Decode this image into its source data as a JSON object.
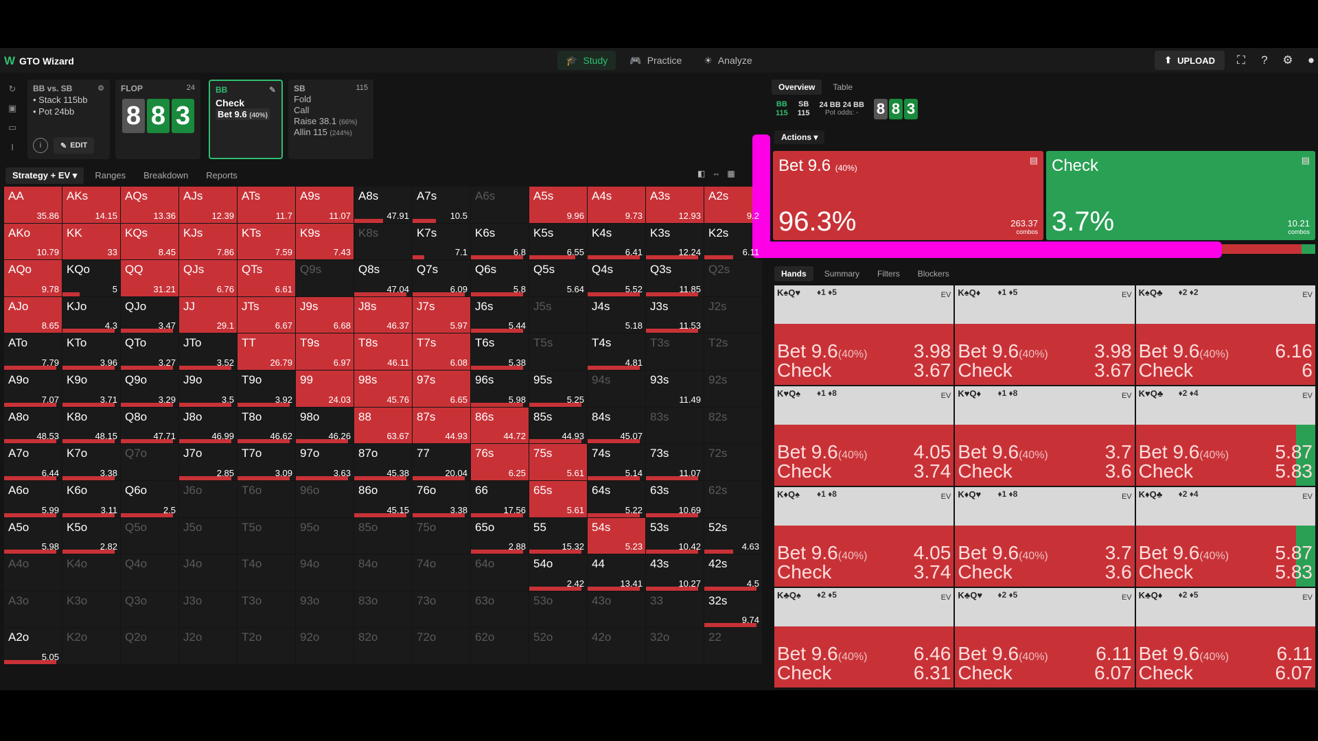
{
  "app": {
    "name": "GTO Wizard"
  },
  "nav": {
    "items": [
      {
        "label": "Study"
      },
      {
        "label": "Practice"
      },
      {
        "label": "Analyze"
      }
    ],
    "upload": "UPLOAD"
  },
  "node_info": {
    "title": "BB vs. SB",
    "stack": "Stack 115bb",
    "pot": "Pot 24bb",
    "edit": "EDIT"
  },
  "flop": {
    "title": "FLOP",
    "num": "24",
    "cards": [
      "8",
      "8",
      "3"
    ]
  },
  "bb_node": {
    "title": "BB",
    "line1": "Check",
    "line2": "Bet 9.6",
    "line2_pct": "(40%)"
  },
  "sb_node": {
    "title": "SB",
    "num": "115",
    "lines": [
      {
        "t": "Fold",
        "p": ""
      },
      {
        "t": "Call",
        "p": ""
      },
      {
        "t": "Raise 38.1",
        "p": "(66%)"
      },
      {
        "t": "Allin 115",
        "p": "(244%)"
      }
    ]
  },
  "grid_tabs": [
    "Strategy + EV ▾",
    "Ranges",
    "Breakdown",
    "Reports"
  ],
  "grid": [
    [
      [
        "AA",
        "35.86",
        1,
        0
      ],
      [
        "AKs",
        "14.15",
        1,
        0
      ],
      [
        "AQs",
        "13.36",
        1,
        0
      ],
      [
        "AJs",
        "12.39",
        1,
        0
      ],
      [
        "ATs",
        "11.7",
        1,
        0
      ],
      [
        "A9s",
        "11.07",
        1,
        0
      ],
      [
        "A8s",
        "47.91",
        0,
        0.5
      ],
      [
        "A7s",
        "10.5",
        0,
        0.4
      ],
      [
        "A6s",
        "",
        0,
        0,
        1
      ],
      [
        "A5s",
        "9.96",
        1,
        0
      ],
      [
        "A4s",
        "9.73",
        1,
        0
      ],
      [
        "A3s",
        "12.93",
        1,
        0
      ],
      [
        "A2s",
        "9.2",
        1,
        0
      ]
    ],
    [
      [
        "AKo",
        "10.79",
        1,
        0
      ],
      [
        "KK",
        "33",
        1,
        0
      ],
      [
        "KQs",
        "8.45",
        1,
        0
      ],
      [
        "KJs",
        "7.86",
        1,
        0
      ],
      [
        "KTs",
        "7.59",
        1,
        0
      ],
      [
        "K9s",
        "7.43",
        1,
        0
      ],
      [
        "K8s",
        "",
        0,
        0,
        1
      ],
      [
        "K7s",
        "7.1",
        0,
        0.2
      ],
      [
        "K6s",
        "6.8",
        0,
        0.9
      ],
      [
        "K5s",
        "6.55",
        0,
        0.8
      ],
      [
        "K4s",
        "6.41",
        0,
        0.9
      ],
      [
        "K3s",
        "12.24",
        0,
        0.9
      ],
      [
        "K2s",
        "6.11",
        0,
        0.5
      ]
    ],
    [
      [
        "AQo",
        "9.78",
        1,
        0
      ],
      [
        "KQo",
        "5",
        0,
        0.3
      ],
      [
        "QQ",
        "31.21",
        1,
        0
      ],
      [
        "QJs",
        "6.76",
        1,
        0
      ],
      [
        "QTs",
        "6.61",
        1,
        0
      ],
      [
        "Q9s",
        "",
        0,
        0,
        1
      ],
      [
        "Q8s",
        "47.04",
        0,
        0.9
      ],
      [
        "Q7s",
        "6.09",
        0,
        0.9
      ],
      [
        "Q6s",
        "5.8",
        0,
        0.9
      ],
      [
        "Q5s",
        "5.64",
        0,
        0
      ],
      [
        "Q4s",
        "5.52",
        0,
        0.9
      ],
      [
        "Q3s",
        "11.85",
        0,
        0.9
      ],
      [
        "Q2s",
        "",
        0,
        0,
        1
      ]
    ],
    [
      [
        "AJo",
        "8.65",
        1,
        0
      ],
      [
        "KJo",
        "4.3",
        0,
        0.9
      ],
      [
        "QJo",
        "3.47",
        0,
        0.9
      ],
      [
        "JJ",
        "29.1",
        1,
        0
      ],
      [
        "JTs",
        "6.67",
        1,
        0
      ],
      [
        "J9s",
        "6.68",
        1,
        0
      ],
      [
        "J8s",
        "46.37",
        1,
        0
      ],
      [
        "J7s",
        "5.97",
        1,
        0
      ],
      [
        "J6s",
        "5.44",
        0,
        0.9
      ],
      [
        "J5s",
        "",
        0,
        0,
        1
      ],
      [
        "J4s",
        "5.18",
        0,
        0
      ],
      [
        "J3s",
        "11.53",
        0,
        0.9
      ],
      [
        "J2s",
        "",
        0,
        0,
        1
      ]
    ],
    [
      [
        "ATo",
        "7.79",
        0,
        0.9
      ],
      [
        "KTo",
        "3.96",
        0,
        0.9
      ],
      [
        "QTo",
        "3.27",
        0,
        0.9
      ],
      [
        "JTo",
        "3.52",
        0,
        0.9
      ],
      [
        "TT",
        "26.79",
        1,
        0
      ],
      [
        "T9s",
        "6.97",
        1,
        0
      ],
      [
        "T8s",
        "46.11",
        1,
        0
      ],
      [
        "T7s",
        "6.08",
        1,
        0
      ],
      [
        "T6s",
        "5.38",
        0,
        0.9
      ],
      [
        "T5s",
        "",
        0,
        0,
        1
      ],
      [
        "T4s",
        "4.81",
        0,
        0.9
      ],
      [
        "T3s",
        "",
        0,
        0,
        1
      ],
      [
        "T2s",
        "",
        0,
        0,
        1
      ]
    ],
    [
      [
        "A9o",
        "7.07",
        0,
        0.9
      ],
      [
        "K9o",
        "3.71",
        0,
        0.9
      ],
      [
        "Q9o",
        "3.29",
        0,
        0.9
      ],
      [
        "J9o",
        "3.5",
        0,
        0.9
      ],
      [
        "T9o",
        "3.92",
        0,
        0.9
      ],
      [
        "99",
        "24.03",
        1,
        0
      ],
      [
        "98s",
        "45.76",
        1,
        0
      ],
      [
        "97s",
        "6.65",
        1,
        0
      ],
      [
        "96s",
        "5.98",
        0,
        0.9
      ],
      [
        "95s",
        "5.25",
        0,
        0.9
      ],
      [
        "94s",
        "",
        0,
        0,
        1
      ],
      [
        "93s",
        "11.49",
        0,
        0
      ],
      [
        "92s",
        "",
        0,
        0,
        1
      ]
    ],
    [
      [
        "A8o",
        "48.53",
        0,
        0.9
      ],
      [
        "K8o",
        "48.15",
        0,
        0.9
      ],
      [
        "Q8o",
        "47.71",
        0,
        0.9
      ],
      [
        "J8o",
        "46.99",
        0,
        0.9
      ],
      [
        "T8o",
        "46.62",
        0,
        0.9
      ],
      [
        "98o",
        "46.26",
        0,
        0.9
      ],
      [
        "88",
        "63.67",
        1,
        0
      ],
      [
        "87s",
        "44.93",
        1,
        0
      ],
      [
        "86s",
        "44.72",
        1,
        0
      ],
      [
        "85s",
        "44.93",
        0,
        0.9
      ],
      [
        "84s",
        "45.07",
        0,
        0.9
      ],
      [
        "83s",
        "",
        0,
        0,
        1
      ],
      [
        "82s",
        "",
        0,
        0,
        1
      ]
    ],
    [
      [
        "A7o",
        "6.44",
        0,
        0.9
      ],
      [
        "K7o",
        "3.38",
        0,
        0.9
      ],
      [
        "Q7o",
        "",
        0,
        0,
        1
      ],
      [
        "J7o",
        "2.85",
        0,
        0.9
      ],
      [
        "T7o",
        "3.09",
        0,
        0.9
      ],
      [
        "97o",
        "3.63",
        0,
        0.9
      ],
      [
        "87o",
        "45.38",
        0,
        0.9
      ],
      [
        "77",
        "20.04",
        0,
        0.9
      ],
      [
        "76s",
        "6.25",
        1,
        0
      ],
      [
        "75s",
        "5.61",
        1,
        0
      ],
      [
        "74s",
        "5.14",
        0,
        0.9
      ],
      [
        "73s",
        "11.07",
        0,
        0.9
      ],
      [
        "72s",
        "",
        0,
        0,
        1
      ]
    ],
    [
      [
        "A6o",
        "5.99",
        0,
        0.9
      ],
      [
        "K6o",
        "3.11",
        0,
        0.9
      ],
      [
        "Q6o",
        "2.5",
        0,
        0.9
      ],
      [
        "J6o",
        "",
        0,
        0,
        1
      ],
      [
        "T6o",
        "",
        0,
        0,
        1
      ],
      [
        "96o",
        "",
        0,
        0,
        1
      ],
      [
        "86o",
        "45.15",
        0,
        0.9
      ],
      [
        "76o",
        "3.38",
        0,
        0.9
      ],
      [
        "66",
        "17.56",
        0,
        0.9
      ],
      [
        "65s",
        "5.61",
        1,
        0
      ],
      [
        "64s",
        "5.22",
        0,
        0.9
      ],
      [
        "63s",
        "10.69",
        0,
        0.9
      ],
      [
        "62s",
        "",
        0,
        0,
        1
      ]
    ],
    [
      [
        "A5o",
        "5.98",
        0,
        0.9
      ],
      [
        "K5o",
        "2.82",
        0,
        0.9
      ],
      [
        "Q5o",
        "",
        0,
        0,
        1
      ],
      [
        "J5o",
        "",
        0,
        0,
        1
      ],
      [
        "T5o",
        "",
        0,
        0,
        1
      ],
      [
        "95o",
        "",
        0,
        0,
        1
      ],
      [
        "85o",
        "",
        0,
        0,
        1
      ],
      [
        "75o",
        "",
        0,
        0,
        1
      ],
      [
        "65o",
        "2.88",
        0,
        0.9
      ],
      [
        "55",
        "15.32",
        0,
        0.9
      ],
      [
        "54s",
        "5.23",
        1,
        0
      ],
      [
        "53s",
        "10.42",
        0,
        0.9
      ],
      [
        "52s",
        "4.63",
        0,
        0.5
      ]
    ],
    [
      [
        "A4o",
        "",
        0,
        0,
        1
      ],
      [
        "K4o",
        "",
        0,
        0,
        1
      ],
      [
        "Q4o",
        "",
        0,
        0,
        1
      ],
      [
        "J4o",
        "",
        0,
        0,
        1
      ],
      [
        "T4o",
        "",
        0,
        0,
        1
      ],
      [
        "94o",
        "",
        0,
        0,
        1
      ],
      [
        "84o",
        "",
        0,
        0,
        1
      ],
      [
        "74o",
        "",
        0,
        0,
        1
      ],
      [
        "64o",
        "",
        0,
        0,
        1
      ],
      [
        "54o",
        "2.42",
        0,
        0.9
      ],
      [
        "44",
        "13.41",
        0,
        0.9
      ],
      [
        "43s",
        "10.27",
        0,
        0.9
      ],
      [
        "42s",
        "4.5",
        0,
        0.9
      ]
    ],
    [
      [
        "A3o",
        "",
        0,
        0,
        1
      ],
      [
        "K3o",
        "",
        0,
        0,
        1
      ],
      [
        "Q3o",
        "",
        0,
        0,
        1
      ],
      [
        "J3o",
        "",
        0,
        0,
        1
      ],
      [
        "T3o",
        "",
        0,
        0,
        1
      ],
      [
        "93o",
        "",
        0,
        0,
        1
      ],
      [
        "83o",
        "",
        0,
        0,
        1
      ],
      [
        "73o",
        "",
        0,
        0,
        1
      ],
      [
        "63o",
        "",
        0,
        0,
        1
      ],
      [
        "53o",
        "",
        0,
        0,
        1
      ],
      [
        "43o",
        "",
        0,
        0,
        1
      ],
      [
        "33",
        "",
        0,
        0,
        1
      ],
      [
        "32s",
        "9.74",
        0,
        0.9
      ]
    ],
    [
      [
        "A2o",
        "5.05",
        0,
        0.9
      ],
      [
        "K2o",
        "",
        0,
        0,
        1
      ],
      [
        "Q2o",
        "",
        0,
        0,
        1
      ],
      [
        "J2o",
        "",
        0,
        0,
        1
      ],
      [
        "T2o",
        "",
        0,
        0,
        1
      ],
      [
        "92o",
        "",
        0,
        0,
        1
      ],
      [
        "82o",
        "",
        0,
        0,
        1
      ],
      [
        "72o",
        "",
        0,
        0,
        1
      ],
      [
        "62o",
        "",
        0,
        0,
        1
      ],
      [
        "52o",
        "",
        0,
        0,
        1
      ],
      [
        "42o",
        "",
        0,
        0,
        1
      ],
      [
        "32o",
        "",
        0,
        0,
        1
      ],
      [
        "22",
        "",
        0,
        0,
        1
      ]
    ]
  ],
  "right_tabs": [
    "Overview",
    "Table"
  ],
  "summary": {
    "bb": "BB",
    "bb_stack": "115",
    "sb": "SB",
    "sb_stack": "115",
    "pot1": "24 BB",
    "pot2": "24 BB",
    "pot_odds": "Pot odds: -",
    "cards": [
      "8",
      "8",
      "3"
    ]
  },
  "actions": {
    "dropdown": "Actions ▾",
    "bet": {
      "name": "Bet 9.6",
      "pct": "(40%)",
      "freq": "96.3%",
      "combos": "263.37",
      "combos_label": "combos"
    },
    "check": {
      "name": "Check",
      "freq": "3.7%",
      "combos": "10.21",
      "combos_label": "combos"
    }
  },
  "freq_split": 0.85,
  "hands_tabs": [
    "Hands",
    "Summary",
    "Filters",
    "Blockers"
  ],
  "hand_rows": [
    [
      {
        "c": "K♠Q♥",
        "b": "♦1 ♦5",
        "bet": "3.98",
        "chk": "3.67",
        "g": 0
      },
      {
        "c": "K♠Q♦",
        "b": "♦1 ♦5",
        "bet": "3.98",
        "chk": "3.67",
        "g": 0
      },
      {
        "c": "K♠Q♣",
        "b": "♦2 ♦2",
        "bet": "6.16",
        "chk": "6",
        "g": 0
      }
    ],
    [
      {
        "c": "K♥Q♠",
        "b": "♦1 ♦8",
        "bet": "4.05",
        "chk": "3.74",
        "g": 0
      },
      {
        "c": "K♥Q♦",
        "b": "♦1 ♦8",
        "bet": "3.7",
        "chk": "3.6",
        "g": 0
      },
      {
        "c": "K♥Q♣",
        "b": "♦2 ♦4",
        "bet": "5.87",
        "chk": "5.83",
        "g": 1
      }
    ],
    [
      {
        "c": "K♦Q♠",
        "b": "♦1 ♦8",
        "bet": "4.05",
        "chk": "3.74",
        "g": 0
      },
      {
        "c": "K♦Q♥",
        "b": "♦1 ♦8",
        "bet": "3.7",
        "chk": "3.6",
        "g": 0
      },
      {
        "c": "K♦Q♣",
        "b": "♦2 ♦4",
        "bet": "5.87",
        "chk": "5.83",
        "g": 1
      }
    ],
    [
      {
        "c": "K♣Q♠",
        "b": "♦2 ♦5",
        "bet": "6.46",
        "chk": "6.31",
        "g": 0
      },
      {
        "c": "K♣Q♥",
        "b": "♦2 ♦5",
        "bet": "6.11",
        "chk": "6.07",
        "g": 0
      },
      {
        "c": "K♣Q♦",
        "b": "♦2 ♦5",
        "bet": "6.11",
        "chk": "6.07",
        "g": 0
      }
    ]
  ],
  "hand_labels": {
    "bet": "Bet 9.6",
    "bet_pct": "(40%)",
    "check": "Check",
    "ev": "EV"
  },
  "colors": {
    "bet": "#c83237",
    "check": "#2aa055",
    "accent": "#2fbf71",
    "highlight": "#ff00e6"
  }
}
